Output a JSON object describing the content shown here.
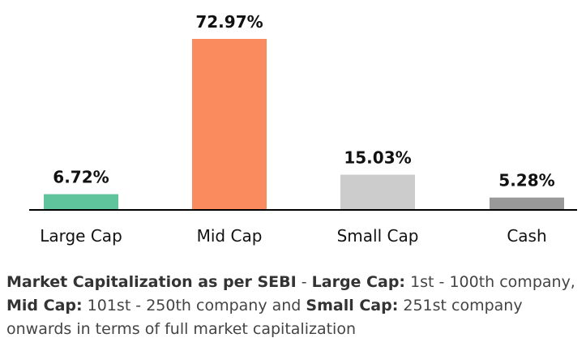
{
  "chart_data": {
    "type": "bar",
    "categories": [
      "Large Cap",
      "Mid Cap",
      "Small Cap",
      "Cash"
    ],
    "values": [
      6.72,
      72.97,
      15.03,
      5.28
    ],
    "value_labels": [
      "6.72%",
      "72.97%",
      "15.03%",
      "5.28%"
    ],
    "colors": [
      "#5fc39c",
      "#f98b5f",
      "#cccccc",
      "#999999"
    ],
    "title": "",
    "xlabel": "",
    "ylabel": "",
    "ylim": [
      0,
      72.97
    ],
    "grid": false,
    "legend": "none"
  },
  "footnote": {
    "lead": "Market Capitalization as per SEBI",
    "sep": " - ",
    "large_label": "Large Cap:",
    "large_text": " 1st - 100th company, ",
    "mid_label": "Mid Cap:",
    "mid_text": " 101st - 250th company and ",
    "small_label": "Small Cap:",
    "small_text": " 251st company onwards in terms of full market capitalization"
  }
}
